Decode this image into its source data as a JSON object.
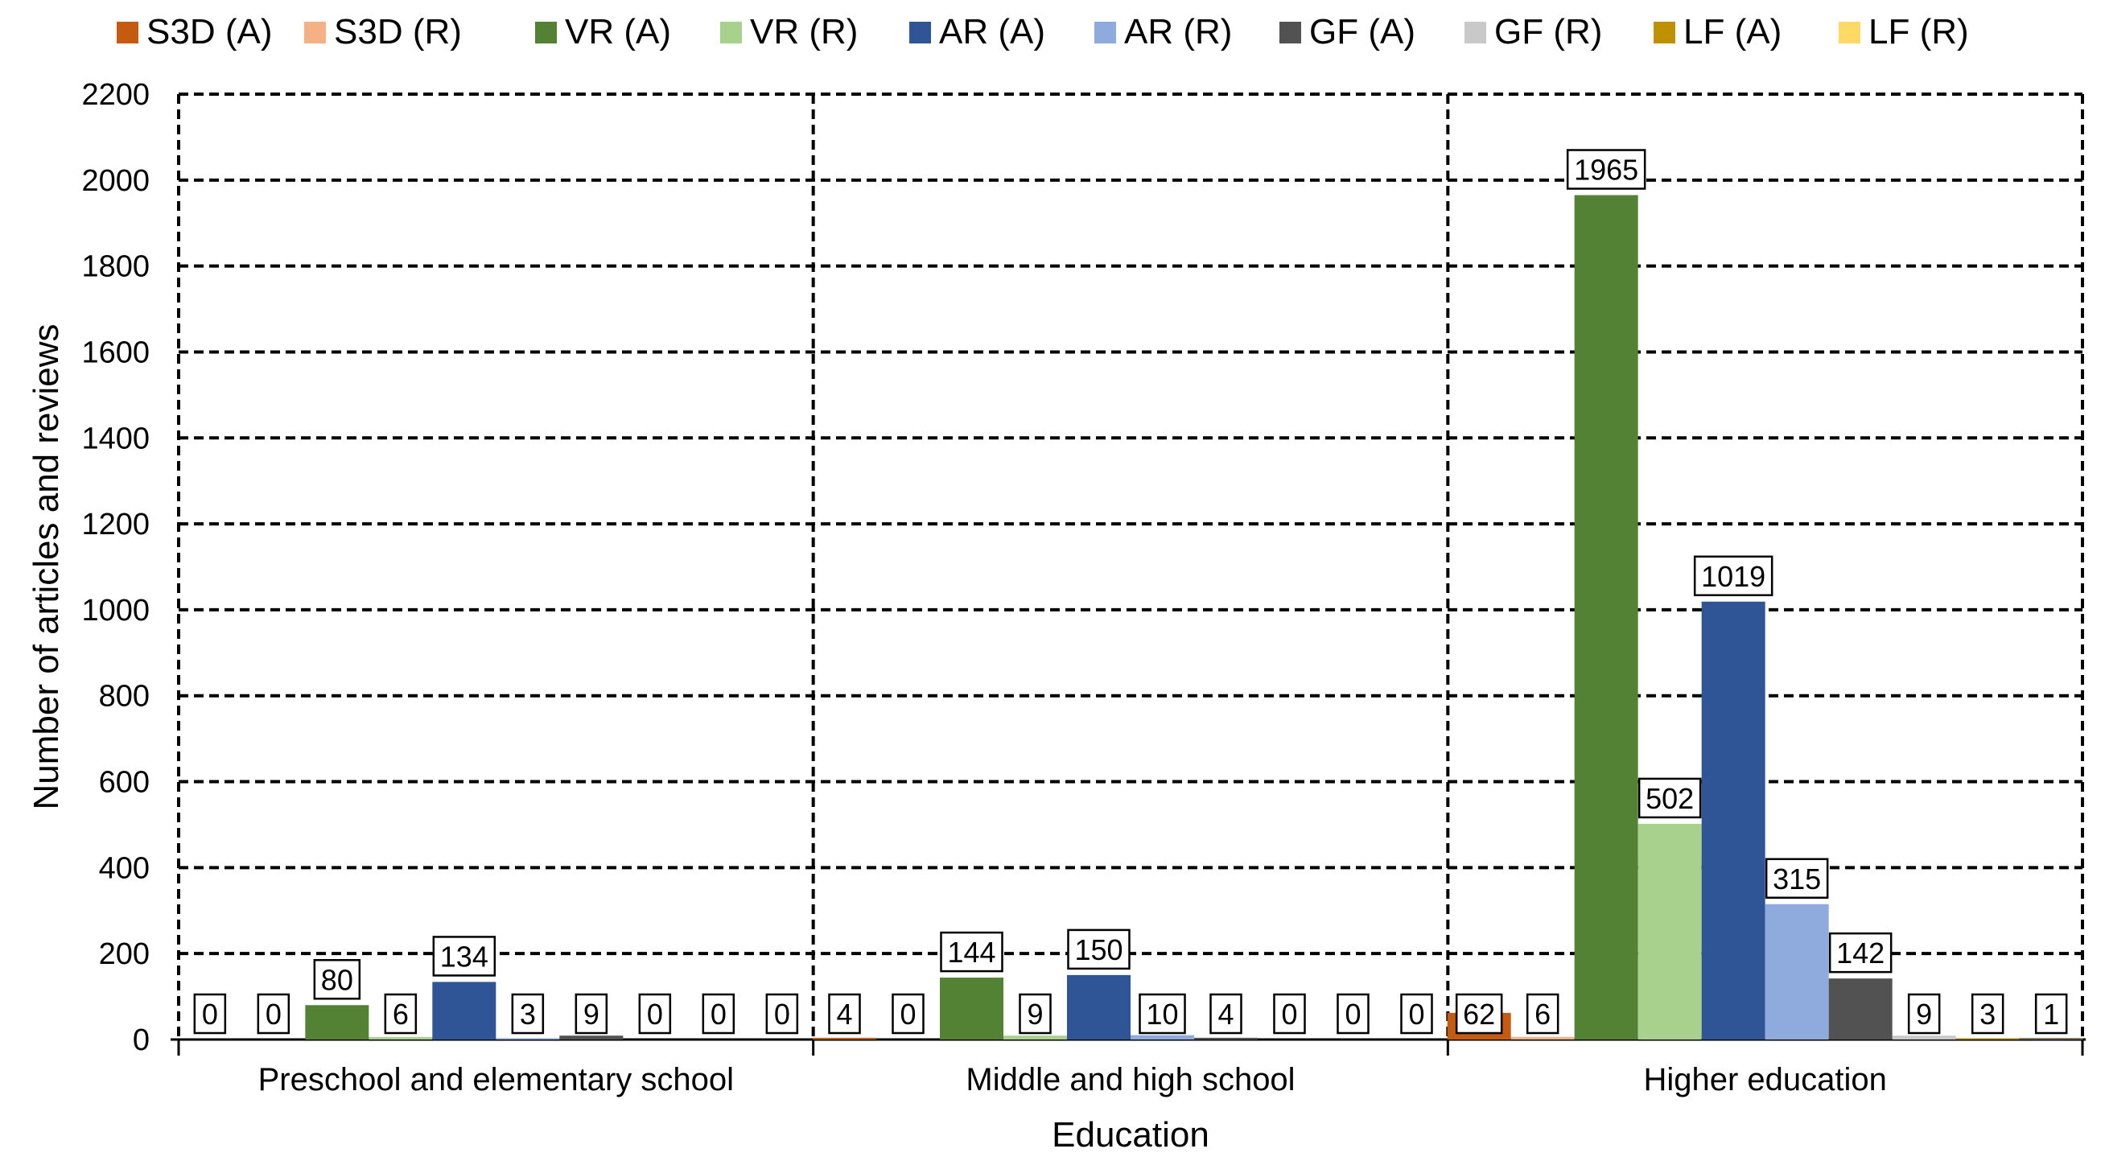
{
  "chart_data": {
    "type": "bar",
    "title": "",
    "xlabel": "Education",
    "ylabel": "Number of articles and reviews",
    "ylim": [
      0,
      2200
    ],
    "ytick_step": 200,
    "categories": [
      "Preschool and elementary school",
      "Middle and high school",
      "Higher education"
    ],
    "legend_position": "top",
    "grid": true,
    "series": [
      {
        "name": "S3D (A)",
        "color": "#c55a11",
        "values": [
          0,
          4,
          62
        ]
      },
      {
        "name": "S3D (R)",
        "color": "#f4b183",
        "values": [
          0,
          0,
          6
        ]
      },
      {
        "name": "VR (A)",
        "color": "#548235",
        "values": [
          80,
          144,
          1965
        ]
      },
      {
        "name": "VR (R)",
        "color": "#a9d18e",
        "values": [
          6,
          9,
          502
        ]
      },
      {
        "name": "AR (A)",
        "color": "#2f5597",
        "values": [
          134,
          150,
          1019
        ]
      },
      {
        "name": "AR (R)",
        "color": "#8faadc",
        "values": [
          3,
          10,
          315
        ]
      },
      {
        "name": "GF (A)",
        "color": "#525252",
        "values": [
          9,
          4,
          142
        ]
      },
      {
        "name": "GF (R)",
        "color": "#c9c9c9",
        "values": [
          0,
          0,
          9
        ]
      },
      {
        "name": "LF (A)",
        "color": "#bf9000",
        "values": [
          0,
          0,
          3
        ]
      },
      {
        "name": "LF (R)",
        "color": "#ffd966",
        "values": [
          0,
          0,
          1
        ]
      }
    ]
  }
}
